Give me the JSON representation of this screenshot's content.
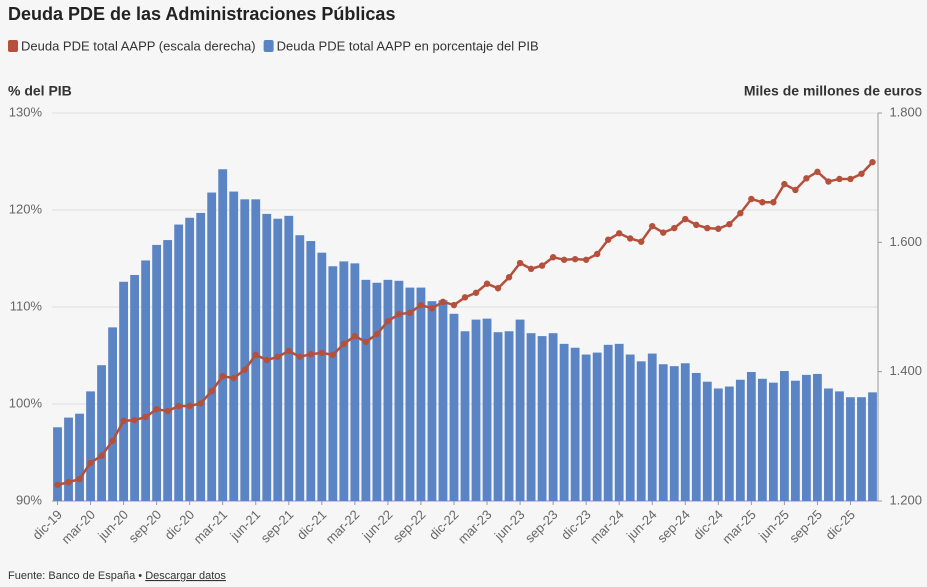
{
  "chart_data": {
    "type": "combo",
    "title": "Deuda PDE de las Administraciones Públicas",
    "y_label": "% del PIB",
    "y2_label": "Miles de millones de euros",
    "source": "Fuente: Banco de España •",
    "link": "Descargar datos",
    "categories": [
      "dic-19",
      null,
      null,
      "mar-20",
      null,
      null,
      "jun-20",
      null,
      null,
      "sep-20",
      null,
      null,
      "dic-20",
      null,
      null,
      "mar-21",
      null,
      null,
      "jun-21",
      null,
      null,
      "sep-21",
      null,
      null,
      "dic-21",
      null,
      null,
      "mar-22",
      null,
      null,
      "jun-22",
      null,
      null,
      "sep-22",
      null,
      null,
      "dic-22",
      null,
      null,
      "mar-23",
      null,
      null,
      "jun-23",
      null,
      null,
      "sep-23",
      null,
      null,
      "dic-23",
      null,
      null,
      "mar-24",
      null,
      null,
      "jun-24",
      null,
      null,
      "sep-24",
      null,
      null,
      "dic-24",
      null,
      null,
      "mar-25",
      null,
      null,
      "jun-25",
      null,
      null,
      "sep-25",
      null,
      null,
      "dic-25",
      null,
      null
    ],
    "series": [
      {
        "name": "Deuda PDE total AAPP (escala derecha)",
        "type": "line",
        "axis": "y2",
        "color": "#b5503c",
        "values": [
          1225,
          1229,
          1234,
          1259,
          1270,
          1293,
          1324,
          1325,
          1330,
          1342,
          1339,
          1347,
          1347,
          1351,
          1370,
          1393,
          1390,
          1403,
          1426,
          1418,
          1423,
          1432,
          1423,
          1427,
          1429,
          1426,
          1443,
          1455,
          1446,
          1458,
          1478,
          1489,
          1491,
          1503,
          1498,
          1508,
          1503,
          1515,
          1522,
          1536,
          1529,
          1546,
          1568,
          1559,
          1564,
          1577,
          1573,
          1574,
          1573,
          1582,
          1604,
          1614,
          1606,
          1601,
          1625,
          1615,
          1622,
          1636,
          1627,
          1622,
          1621,
          1628,
          1645,
          1667,
          1662,
          1662,
          1690,
          1681,
          1699,
          1709,
          1694,
          1698,
          1698,
          1706,
          1724
        ]
      },
      {
        "name": "Deuda PDE total AAPP en porcentaje del PIB",
        "type": "bar",
        "color": "#5b84c4",
        "values": [
          97.6,
          98.6,
          99.0,
          101.3,
          104.0,
          107.9,
          112.6,
          113.3,
          114.8,
          116.4,
          116.9,
          118.5,
          119.2,
          119.7,
          121.8,
          124.2,
          121.9,
          121.1,
          121.1,
          119.6,
          119.1,
          119.4,
          117.4,
          116.8,
          115.6,
          114.2,
          114.7,
          114.5,
          112.8,
          112.5,
          112.8,
          112.7,
          112.0,
          112.0,
          110.6,
          110.7,
          109.3,
          107.5,
          108.7,
          108.8,
          107.4,
          107.5,
          108.7,
          107.3,
          107.0,
          107.3,
          106.2,
          105.8,
          105.1,
          105.3,
          106.1,
          106.2,
          105.1,
          104.4,
          105.2,
          104.1,
          103.9,
          104.2,
          103.2,
          102.3,
          101.6,
          101.8,
          102.5,
          103.3,
          102.6,
          102.2,
          103.4,
          102.4,
          103.0,
          103.1,
          101.6,
          101.3,
          100.7,
          100.7,
          101.2
        ]
      }
    ],
    "ylim": [
      90,
      130
    ],
    "yticks": [
      {
        "value": 90,
        "label": "90%"
      },
      {
        "value": 100,
        "label": "100%"
      },
      {
        "value": 110,
        "label": "110%"
      },
      {
        "value": 120,
        "label": "120%"
      },
      {
        "value": 130,
        "label": "130%"
      }
    ],
    "y2lim": [
      1200,
      1800
    ],
    "y2ticks": [
      {
        "value": 1200,
        "label": "1.200"
      },
      {
        "value": 1400,
        "label": "1.400"
      },
      {
        "value": 1600,
        "label": "1.600"
      },
      {
        "value": 1800,
        "label": "1.800"
      }
    ],
    "grid": true
  }
}
